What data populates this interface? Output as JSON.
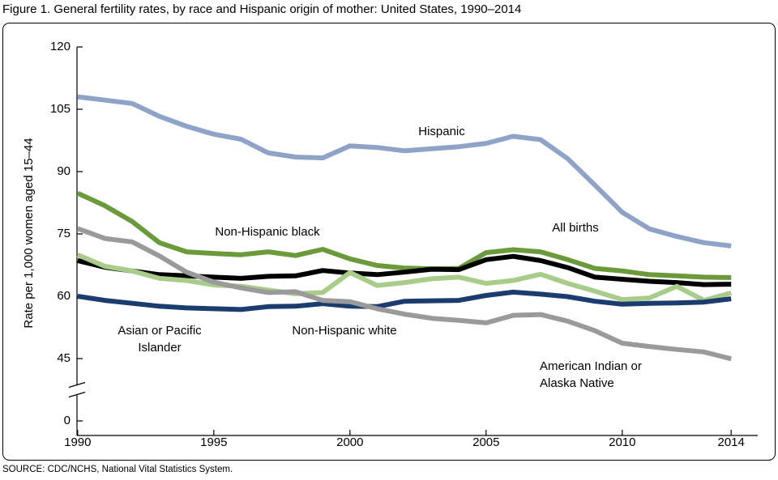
{
  "chart_data": {
    "type": "line",
    "title": "Figure 1. General fertility rates, by race and Hispanic origin of mother: United States, 1990–2014",
    "y_label": "Rate per 1,000 women aged 15–44",
    "source": "SOURCE: CDC/NCHS, National Vital Statistics System.",
    "x": [
      1990,
      1991,
      1992,
      1993,
      1994,
      1995,
      1996,
      1997,
      1998,
      1999,
      2000,
      2001,
      2002,
      2003,
      2004,
      2005,
      2006,
      2007,
      2008,
      2009,
      2010,
      2011,
      2012,
      2013,
      2014
    ],
    "xlim": [
      1989.5,
      2014.5
    ],
    "xticks": [
      1990,
      1995,
      2000,
      2005,
      2010,
      2014
    ],
    "ylim": [
      0,
      120
    ],
    "yticks": [
      0,
      45,
      60,
      75,
      90,
      105,
      120
    ],
    "ybreak": [
      0,
      45
    ],
    "grid": false,
    "series": [
      {
        "name": "Hispanic",
        "color": "#8fa3c9",
        "values": [
          108.0,
          107.2,
          106.4,
          103.3,
          100.9,
          99.0,
          97.8,
          94.5,
          93.5,
          93.3,
          96.2,
          95.8,
          95.0,
          95.5,
          96.0,
          96.8,
          98.5,
          97.7,
          93.1,
          86.7,
          80.2,
          76.2,
          74.4,
          72.9,
          72.1
        ]
      },
      {
        "name": "Non-Hispanic black",
        "color": "#6a9a3a",
        "values": [
          84.8,
          81.8,
          78.0,
          72.9,
          70.7,
          70.3,
          70.0,
          70.7,
          69.8,
          71.3,
          69.0,
          67.4,
          66.8,
          66.6,
          66.7,
          70.5,
          71.2,
          70.7,
          68.8,
          66.7,
          66.1,
          65.2,
          64.9,
          64.6,
          64.5
        ]
      },
      {
        "name": "All births",
        "color": "#000000",
        "values": [
          68.6,
          67.0,
          66.1,
          65.2,
          64.9,
          64.6,
          64.3,
          64.8,
          64.9,
          66.2,
          65.6,
          65.2,
          65.8,
          66.5,
          66.4,
          68.8,
          69.6,
          68.6,
          66.9,
          64.6,
          64.1,
          63.6,
          63.3,
          62.8,
          62.9
        ]
      },
      {
        "name": "Non-Hispanic white",
        "color": "#a9cc8a",
        "values": [
          70.0,
          67.2,
          66.1,
          64.3,
          63.8,
          62.7,
          62.4,
          61.5,
          60.6,
          60.9,
          65.7,
          62.6,
          63.3,
          64.2,
          64.6,
          63.1,
          63.8,
          65.3,
          63.1,
          61.2,
          59.2,
          59.6,
          62.4,
          59.0,
          60.8
        ]
      },
      {
        "name": "Asian or Pacific Islander",
        "color": "#1a3c6e",
        "values": [
          60.0,
          59.0,
          58.3,
          57.6,
          57.2,
          57.0,
          56.8,
          57.5,
          57.6,
          58.2,
          57.6,
          57.5,
          58.8,
          58.9,
          59.0,
          60.2,
          61.0,
          60.5,
          59.9,
          58.8,
          58.1,
          58.3,
          58.4,
          58.6,
          59.4
        ]
      },
      {
        "name": "American Indian or Alaska Native",
        "color": "#9a9a9a",
        "values": [
          76.3,
          73.9,
          73.1,
          69.7,
          65.8,
          63.4,
          62.0,
          60.9,
          61.1,
          59.0,
          58.7,
          57.0,
          55.7,
          54.7,
          54.2,
          53.6,
          55.4,
          55.6,
          54.0,
          51.7,
          48.7,
          47.9,
          47.2,
          46.6,
          44.8
        ]
      }
    ]
  }
}
